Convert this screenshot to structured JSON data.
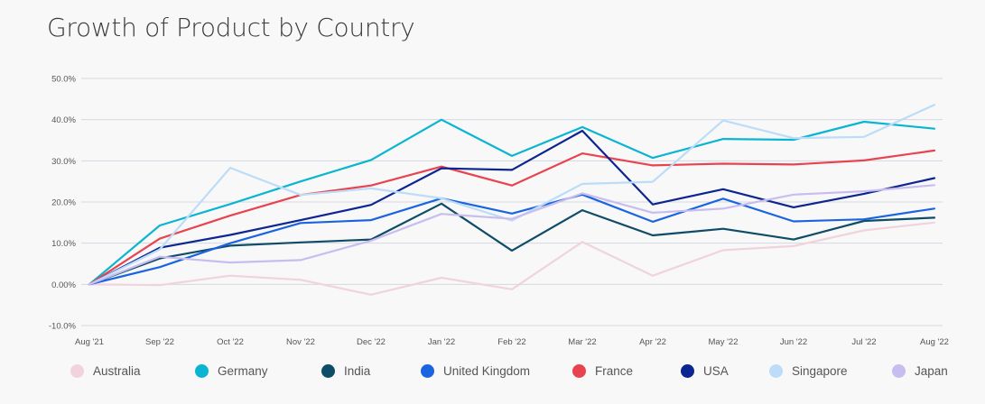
{
  "chart_data": {
    "type": "line",
    "title": "Growth of Product by Country",
    "xlabel": "",
    "ylabel": "",
    "ylim": [
      -10,
      50
    ],
    "yticks": [
      50,
      40,
      30,
      20,
      10,
      0,
      -10
    ],
    "ytick_labels": [
      "50.0%",
      "40.0%",
      "30.0%",
      "20.0%",
      "10.0%",
      "0.00%",
      "-10.0%"
    ],
    "grid": true,
    "legend_position": "bottom",
    "categories": [
      "Aug '21",
      "Sep '22",
      "Oct '22",
      "Nov '22",
      "Dec '22",
      "Jan '22",
      "Feb '22",
      "Mar '22",
      "Apr '22",
      "May '22",
      "Jun '22",
      "Jul '22",
      "Aug '22"
    ],
    "series": [
      {
        "name": "Australia",
        "color": "#f0d3dc",
        "values": [
          0,
          -0.2,
          2.1,
          1.1,
          -2.5,
          1.6,
          -1.2,
          10.3,
          2.1,
          8.3,
          9.3,
          13.1,
          15.0
        ]
      },
      {
        "name": "Germany",
        "color": "#0ab5d1",
        "values": [
          0,
          14.3,
          19.5,
          25.0,
          30.2,
          40.0,
          31.2,
          38.2,
          30.7,
          35.3,
          35.1,
          39.5,
          37.8
        ]
      },
      {
        "name": "India",
        "color": "#0f4c68",
        "values": [
          0,
          6.3,
          9.4,
          10.2,
          10.9,
          19.6,
          8.2,
          18.0,
          11.9,
          13.5,
          10.9,
          15.4,
          16.2
        ]
      },
      {
        "name": "United Kingdom",
        "color": "#1a64e0",
        "values": [
          0,
          4.2,
          10.0,
          14.9,
          15.6,
          20.9,
          17.2,
          21.8,
          15.2,
          20.8,
          15.3,
          15.8,
          18.4
        ]
      },
      {
        "name": "France",
        "color": "#e8434f",
        "values": [
          0,
          11.1,
          16.7,
          21.7,
          24.0,
          28.6,
          24.0,
          31.8,
          28.9,
          29.3,
          29.1,
          30.1,
          32.5
        ]
      },
      {
        "name": "USA",
        "color": "#0c2590",
        "values": [
          0,
          8.9,
          12.0,
          15.6,
          19.3,
          28.2,
          27.8,
          37.3,
          19.4,
          23.1,
          18.7,
          22.0,
          25.8
        ]
      },
      {
        "name": "Singapore",
        "color": "#bcdcf7",
        "values": [
          0,
          8.5,
          28.3,
          21.7,
          23.3,
          20.9,
          15.5,
          24.4,
          24.9,
          39.8,
          35.5,
          35.8,
          43.6
        ]
      },
      {
        "name": "Japan",
        "color": "#c8bdef",
        "values": [
          0,
          6.7,
          5.3,
          5.9,
          10.6,
          17.1,
          15.9,
          22.1,
          17.4,
          18.4,
          21.8,
          22.6,
          24.1
        ]
      }
    ]
  }
}
